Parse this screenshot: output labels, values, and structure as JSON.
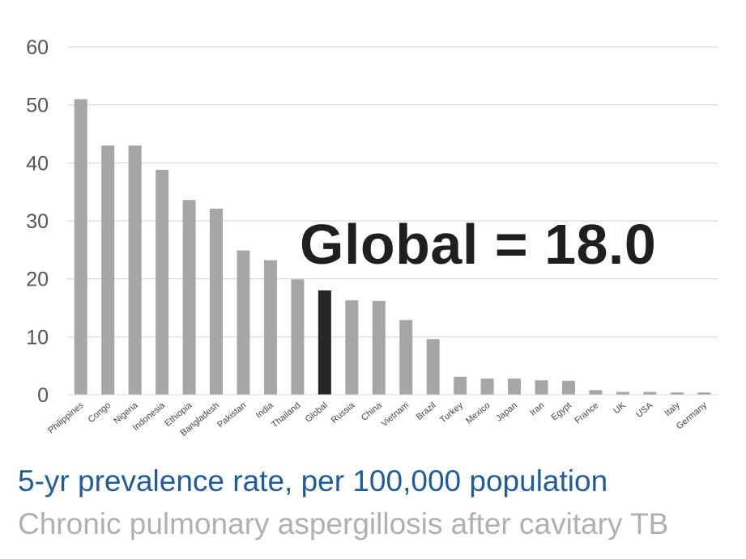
{
  "chart_data": {
    "type": "bar",
    "categories": [
      "Philippines",
      "Congo",
      "Nigeria",
      "Indonesia",
      "Ethiopia",
      "Bangladesh",
      "Pakistan",
      "India",
      "Thailand",
      "Global",
      "Russia",
      "China",
      "Vietnam",
      "Brazil",
      "Turkey",
      "Mexico",
      "Japan",
      "Iran",
      "Egypt",
      "France",
      "UK",
      "USA",
      "Italy",
      "Germany"
    ],
    "values": [
      51,
      43,
      43,
      38.8,
      33.6,
      32.1,
      24.9,
      23.2,
      19.9,
      18.0,
      16.3,
      16.2,
      12.9,
      9.6,
      3.1,
      2.8,
      2.8,
      2.5,
      2.4,
      0.8,
      0.5,
      0.5,
      0.4,
      0.4
    ],
    "highlight": "Global",
    "ylim": [
      0,
      60
    ],
    "yticks": [
      0,
      10,
      20,
      30,
      40,
      50,
      60
    ],
    "grid": true,
    "colors": {
      "bar": "#a7a5a6",
      "highlight": "#262626",
      "grid": "#d0d0d0"
    },
    "annotation": "Global = 18.0"
  },
  "subtitle": "5-yr prevalence rate, per 100,000 population",
  "subtitle2": "Chronic pulmonary aspergillosis after cavitary TB"
}
